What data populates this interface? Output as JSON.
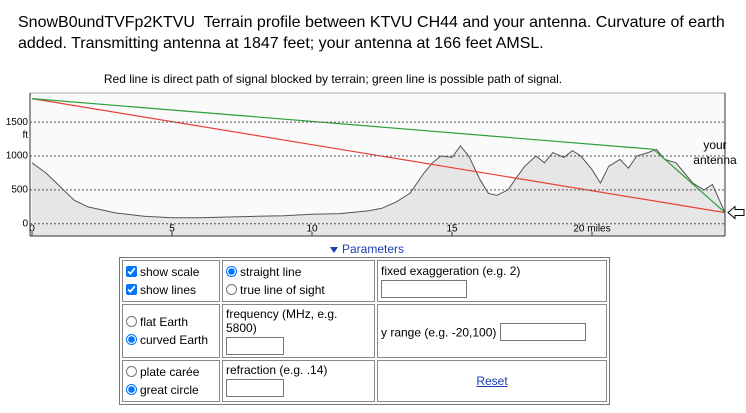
{
  "header": {
    "title": "SnowB0undTVFp2KTVU  Terrain profile between KTVU CH44 and your antenna. Curvature of earth added. Transmitting antenna at 1847 feet; your antenna at 166 feet AMSL.",
    "caption": "Red line is direct path of signal blocked by terrain; green line is possible path of signal."
  },
  "chart_data": {
    "type": "line",
    "y_unit": "ft",
    "annotation": "your antenna",
    "xlim": [
      0,
      24.75
    ],
    "ylim": [
      -180,
      1930
    ],
    "xticks": [
      0,
      5,
      10,
      15,
      {
        "value": 20,
        "label": "20 miles"
      }
    ],
    "yticks": [
      0,
      500,
      1000,
      1500
    ],
    "grid": true,
    "series": [
      {
        "name": "terrain",
        "color": "#555555",
        "fill": "#e6e6e6",
        "x": [
          0,
          0.5,
          1,
          1.5,
          2,
          3,
          4,
          5,
          6,
          7,
          8,
          9,
          10,
          11,
          12,
          12.5,
          13,
          13.5,
          14,
          14.3,
          14.6,
          15,
          15.3,
          15.6,
          16,
          16.3,
          16.6,
          17,
          17.3,
          17.6,
          18,
          18.3,
          18.6,
          19,
          19.3,
          19.6,
          20,
          20.3,
          20.6,
          21,
          21.3,
          21.6,
          22,
          22.3,
          22.6,
          23,
          23.3,
          23.6,
          24,
          24.3,
          24.75
        ],
        "values": [
          900,
          750,
          550,
          350,
          250,
          160,
          110,
          90,
          90,
          100,
          110,
          120,
          140,
          150,
          190,
          230,
          320,
          450,
          750,
          900,
          1000,
          980,
          1150,
          1000,
          650,
          450,
          420,
          500,
          680,
          850,
          1000,
          900,
          1050,
          980,
          1080,
          1000,
          800,
          600,
          850,
          950,
          820,
          1000,
          1050,
          1100,
          950,
          900,
          750,
          600,
          500,
          580,
          166
        ]
      },
      {
        "name": "direct path",
        "color": "#e8413a",
        "x": [
          0,
          24.75
        ],
        "values": [
          1847,
          166
        ]
      },
      {
        "name": "possible path",
        "color": "#2e9e3a",
        "x": [
          0,
          22.2,
          24.75
        ],
        "values": [
          1847,
          1100,
          166
        ]
      }
    ]
  },
  "parameters": {
    "toggle": "Parameters",
    "rows": [
      {
        "c1": [
          {
            "label": "show scale",
            "checked": true
          },
          {
            "label": "show lines",
            "checked": true
          }
        ],
        "c2": [
          {
            "label": "straight line",
            "checked": true
          },
          {
            "label": "true line of sight",
            "checked": false
          }
        ],
        "c3": "fixed exaggeration (e.g. 2)"
      },
      {
        "c1": [
          {
            "label": "flat Earth",
            "checked": false
          },
          {
            "label": "curved Earth",
            "checked": true
          }
        ],
        "c2": "frequency (MHz, e.g. 5800)",
        "c3": "y range (e.g. -20,100)"
      },
      {
        "c1": [
          {
            "label": "plate carée",
            "checked": false
          },
          {
            "label": "great circle",
            "checked": true
          }
        ],
        "c2": "refraction (e.g. .14)",
        "c3": "Reset"
      }
    ]
  }
}
